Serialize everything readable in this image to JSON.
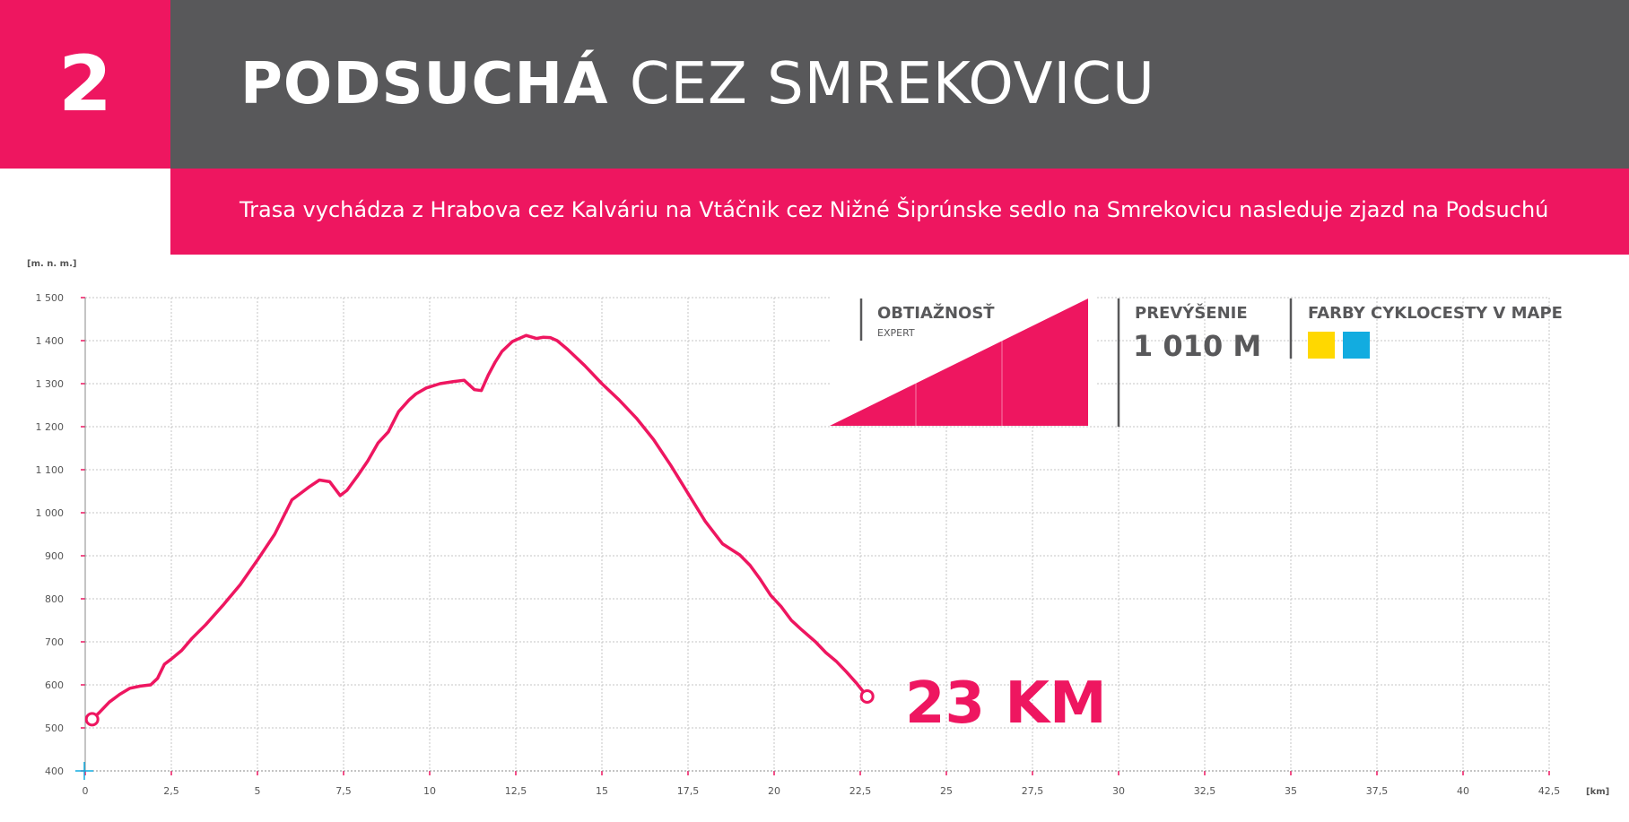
{
  "header": {
    "number": "2",
    "title_bold": "PODSUCHÁ",
    "title_light": "CEZ SMREKOVICU",
    "subtitle": "Trasa vychádza z Hrabova cez Kalváriu na Vtáčnik cez Nižné Šiprúnske sedlo na Smrekovicu nasleduje zjazd na Podsuchú"
  },
  "info": {
    "difficulty_label": "OBTIAŽNOSŤ",
    "difficulty_value": "EXPERT",
    "elevation_label": "PREVÝŠENIE",
    "elevation_value": "1 010 M",
    "colors_label": "FARBY CYKLOCESTY V MAPE",
    "route_colors": [
      "#ffd800",
      "#12ace0"
    ]
  },
  "colors": {
    "accent": "#ee1660",
    "header_gray": "#58585a"
  },
  "chart_data": {
    "type": "line",
    "title": "",
    "ylabel": "[m. n. m.]",
    "xlabel": "[km]",
    "xlim": [
      0,
      42.5
    ],
    "ylim": [
      400,
      1500
    ],
    "x_ticks": [
      "0",
      "2,5",
      "5",
      "7,5",
      "10",
      "12,5",
      "15",
      "17,5",
      "20",
      "22,5",
      "25",
      "27,5",
      "30",
      "32,5",
      "35",
      "37,5",
      "40",
      "42,5"
    ],
    "y_ticks": [
      "400",
      "500",
      "600",
      "700",
      "800",
      "900",
      "1 000",
      "1 100",
      "1 200",
      "1 300",
      "1 400",
      "1 500"
    ],
    "grid": true,
    "series": [
      {
        "x": [
          0.2,
          0.4,
          0.7,
          1.0,
          1.3,
          1.6,
          1.9,
          2.1,
          2.3,
          2.5,
          2.8,
          3.1,
          3.5,
          4.0,
          4.5,
          5.0,
          5.5,
          6.0,
          6.3,
          6.5,
          6.8,
          7.1,
          7.4,
          7.6,
          7.9,
          8.2,
          8.5,
          8.8,
          9.1,
          9.4,
          9.6,
          9.9,
          10.3,
          10.7,
          11.0,
          11.3,
          11.5,
          11.7,
          11.9,
          12.1,
          12.4,
          12.8,
          13.1,
          13.3,
          13.5,
          13.7,
          14.0,
          14.5,
          15.0,
          15.5,
          16.0,
          16.5,
          17.0,
          17.5,
          18.0,
          18.5,
          19.0,
          19.3,
          19.6,
          19.9,
          20.2,
          20.5,
          20.8,
          21.2,
          21.5,
          21.8,
          22.1,
          22.4,
          22.7
        ],
        "y": [
          520,
          535,
          560,
          578,
          592,
          597,
          600,
          615,
          648,
          660,
          680,
          708,
          740,
          785,
          833,
          890,
          950,
          1030,
          1048,
          1060,
          1076,
          1072,
          1040,
          1052,
          1085,
          1120,
          1162,
          1188,
          1235,
          1262,
          1276,
          1290,
          1300,
          1305,
          1308,
          1286,
          1284,
          1320,
          1350,
          1375,
          1398,
          1412,
          1405,
          1408,
          1407,
          1400,
          1380,
          1342,
          1300,
          1262,
          1220,
          1170,
          1110,
          1045,
          980,
          928,
          902,
          878,
          845,
          808,
          782,
          750,
          728,
          700,
          675,
          655,
          630,
          603,
          573
        ]
      }
    ],
    "total_distance_label": "23 KM"
  }
}
